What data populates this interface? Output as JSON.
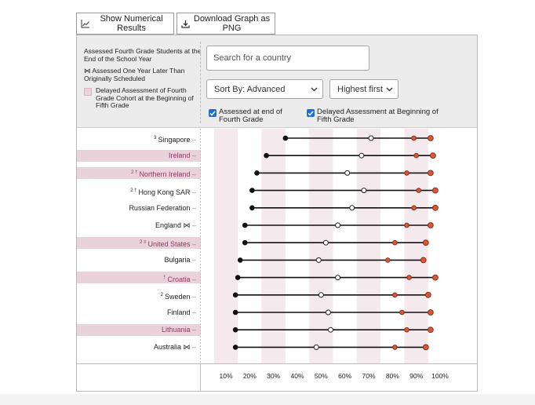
{
  "toolbar": {
    "show_numerical_label": "Show Numerical Results",
    "download_label": "Download Graph as PNG",
    "show_icon": "line-chart-icon",
    "download_icon": "download-icon"
  },
  "legend": {
    "assessed_end": "Assessed Fourth Grade Students at the End of the School Year",
    "one_year_later": "⋈ Assessed One Year Later Than Originally Scheduled",
    "delayed": "Delayed Assessment of Fourth Grade Cohort at the Beginning of Fifth Grade"
  },
  "search": {
    "placeholder": "Search for a country",
    "value": ""
  },
  "sort": {
    "selected": "Sort By: Advanced",
    "order_selected": "Highest first"
  },
  "checks": {
    "assessed_end_label": "Assessed at end of Fourth Grade",
    "assessed_end_checked": true,
    "delayed_label": "Delayed Assessment at Beginning of Fifth Grade",
    "delayed_checked": true
  },
  "colors": {
    "band_highlight": "#ead2da",
    "stripe": "#f4e9ec",
    "dot_fill_red": "#d9583a",
    "dot_fill_black": "#111111",
    "dot_fill_white": "#ffffff",
    "highlight_text": "#8b3c64",
    "checkbox": "#1f6fd6"
  },
  "countries": [
    {
      "prefix": "3",
      "name": "Singapore",
      "suffix": "",
      "highlight": false
    },
    {
      "prefix": "",
      "name": "Ireland",
      "suffix": "",
      "highlight": true
    },
    {
      "prefix": "2 †",
      "name": "Northern Ireland",
      "suffix": "",
      "highlight": true
    },
    {
      "prefix": "2 †",
      "name": "Hong Kong SAR",
      "suffix": "",
      "highlight": false
    },
    {
      "prefix": "",
      "name": "Russian Federation",
      "suffix": "",
      "highlight": false
    },
    {
      "prefix": "",
      "name": "England",
      "suffix": "⋈",
      "highlight": false
    },
    {
      "prefix": "2 ≡",
      "name": "United States",
      "suffix": "",
      "highlight": true
    },
    {
      "prefix": "",
      "name": "Bulgaria",
      "suffix": "",
      "highlight": false
    },
    {
      "prefix": "†",
      "name": "Croatia",
      "suffix": "",
      "highlight": true
    },
    {
      "prefix": "2",
      "name": "Sweden",
      "suffix": "",
      "highlight": false
    },
    {
      "prefix": "",
      "name": "Finland",
      "suffix": "",
      "highlight": false
    },
    {
      "prefix": "",
      "name": "Lithuania",
      "suffix": "",
      "highlight": true
    },
    {
      "prefix": "",
      "name": "Australia",
      "suffix": "⋈",
      "highlight": false
    }
  ],
  "chart_data": {
    "type": "scatter",
    "x_ticks": [
      "10%",
      "20%",
      "30%",
      "40%",
      "50%",
      "60%",
      "70%",
      "80%",
      "90%",
      "100%"
    ],
    "xlim": [
      5,
      105
    ],
    "grid_stripes": true,
    "series": [
      {
        "values": [
          35,
          27,
          23,
          21,
          21,
          18,
          18,
          16,
          15,
          14,
          14,
          14,
          14
        ]
      },
      {
        "values": [
          71,
          67,
          61,
          68,
          63,
          57,
          52,
          49,
          57,
          50,
          53,
          54,
          48
        ]
      },
      {
        "values": [
          89,
          90,
          86,
          91,
          89,
          86,
          81,
          78,
          87,
          81,
          84,
          86,
          81
        ]
      },
      {
        "values": [
          96,
          97,
          96,
          98,
          98,
          96,
          94,
          93,
          98,
          95,
          96,
          96,
          94
        ]
      }
    ]
  }
}
